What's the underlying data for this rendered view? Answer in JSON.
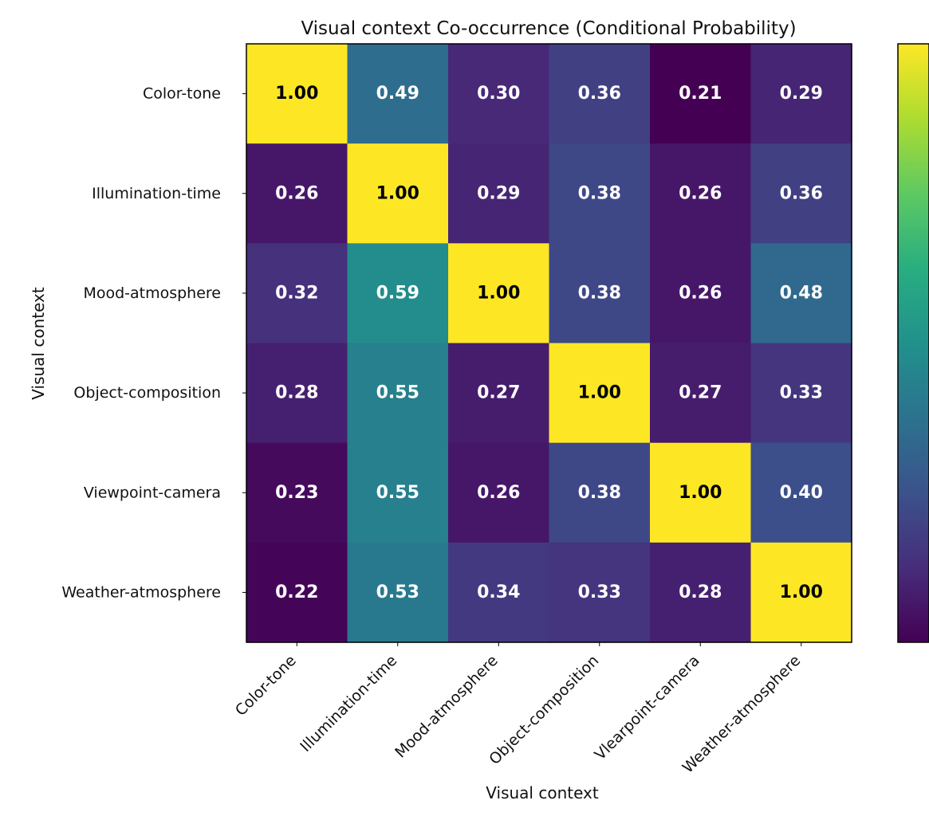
{
  "chart_data": {
    "type": "heatmap",
    "title": "Visual context Co-occurrence (Conditional Probability)",
    "xlabel": "Visual context",
    "ylabel": "Visual context",
    "x_categories": [
      "Color-tone",
      "Illumination-time",
      "Mood-atmosphere",
      "Object-composition",
      "Vlearpoint-camera",
      "Weather-atmosphere"
    ],
    "y_categories": [
      "Color-tone",
      "Illumination-time",
      "Mood-atmosphere",
      "Object-composition",
      "Viewpoint-camera",
      "Weather-atmosphere"
    ],
    "values": [
      [
        1.0,
        0.49,
        0.3,
        0.36,
        0.21,
        0.29
      ],
      [
        0.26,
        1.0,
        0.29,
        0.38,
        0.26,
        0.36
      ],
      [
        0.32,
        0.59,
        1.0,
        0.38,
        0.26,
        0.48
      ],
      [
        0.28,
        0.55,
        0.27,
        1.0,
        0.27,
        0.33
      ],
      [
        0.23,
        0.55,
        0.26,
        0.38,
        1.0,
        0.4
      ],
      [
        0.22,
        0.53,
        0.34,
        0.33,
        0.28,
        1.0
      ]
    ],
    "value_format": "0.00",
    "color_range": [
      0.21,
      1.0
    ],
    "colormap": "viridis",
    "colorbar": true
  }
}
